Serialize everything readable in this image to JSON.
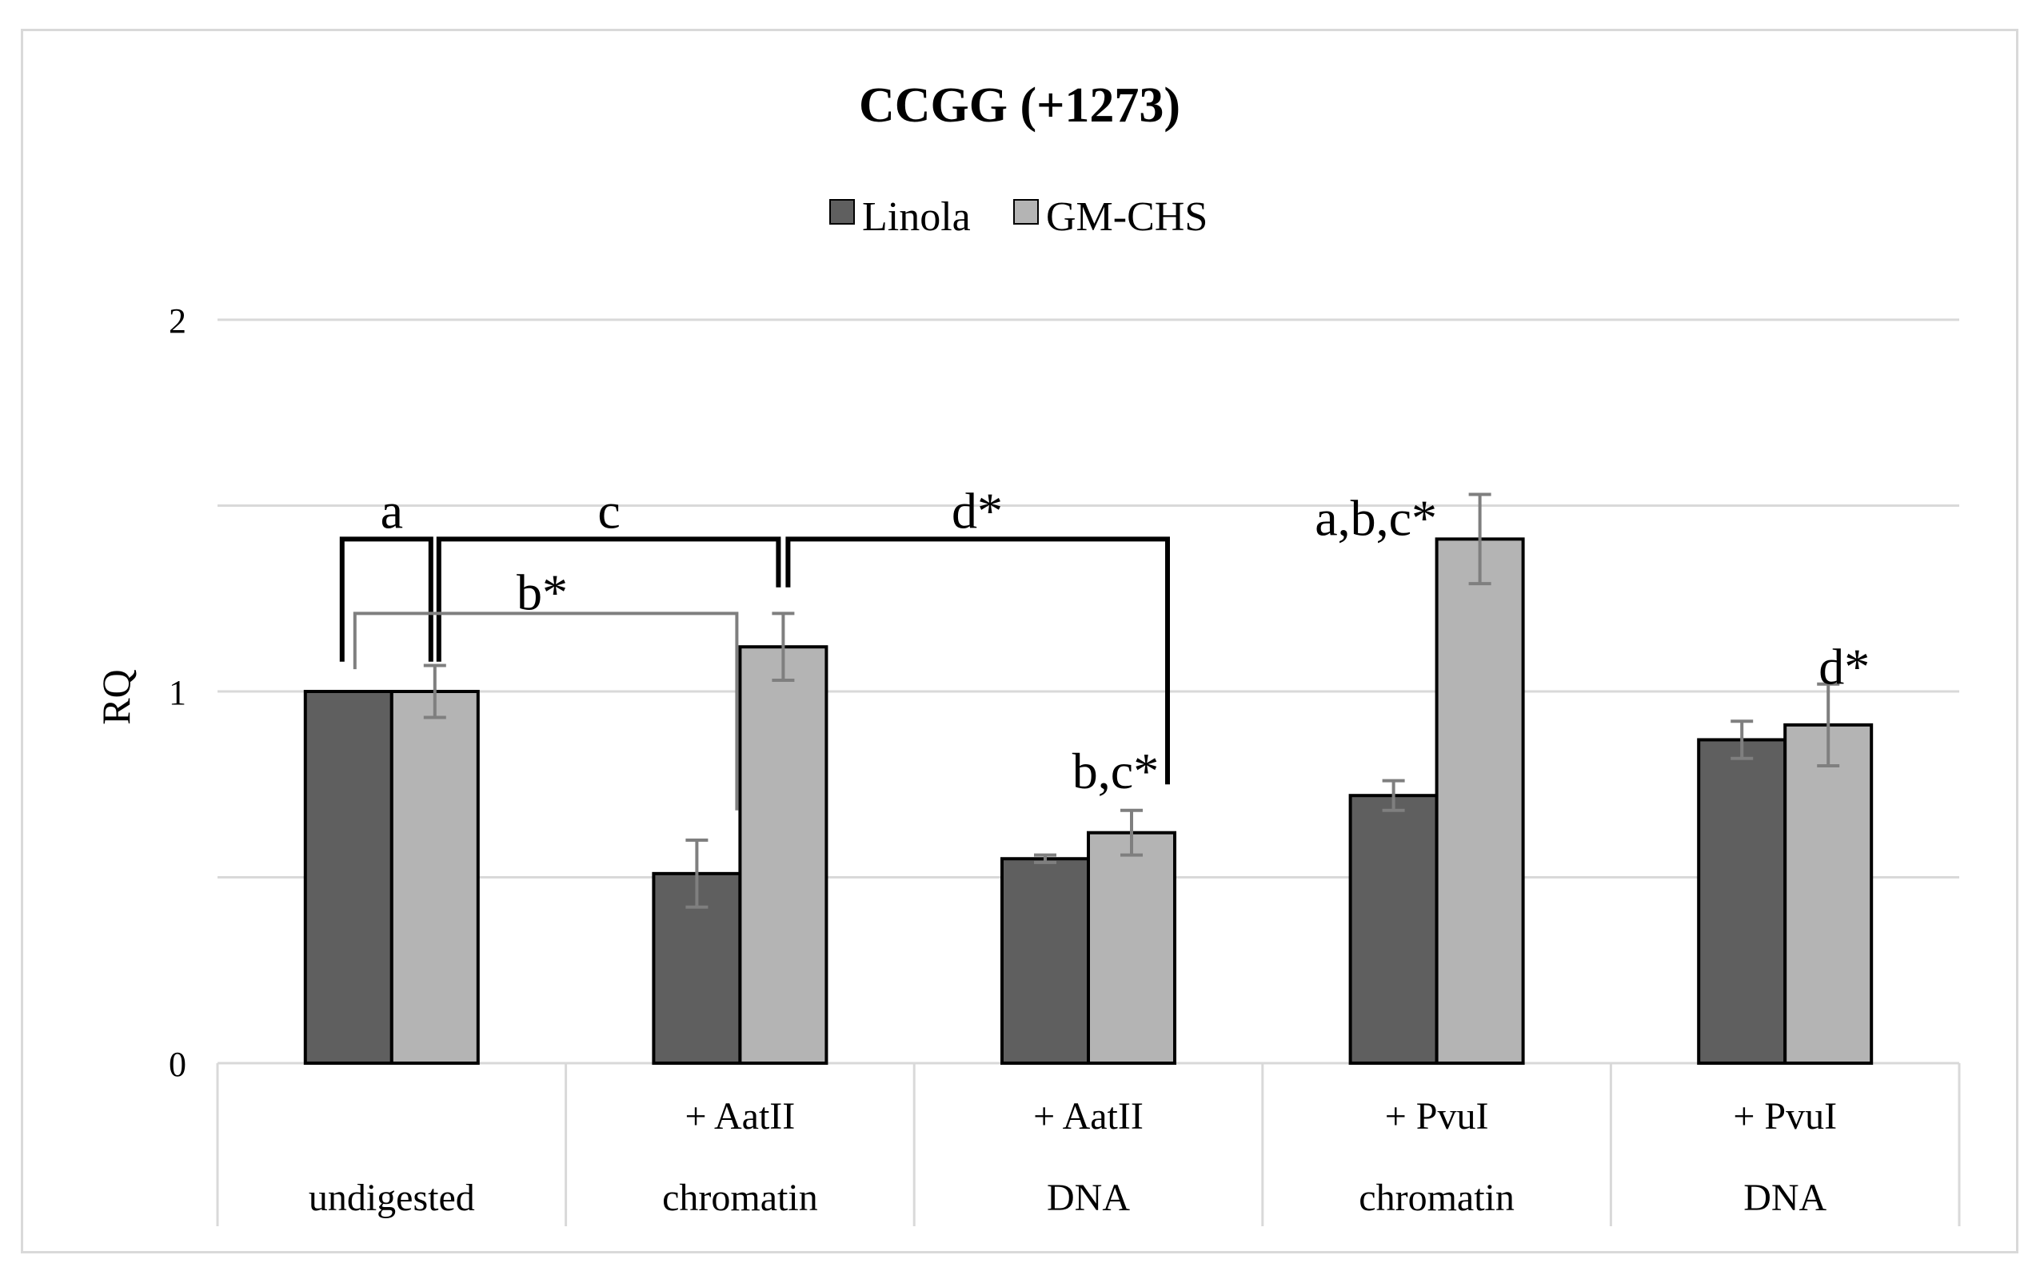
{
  "chart_data": {
    "type": "bar",
    "title": "CCGG (+1273)",
    "ylabel": "RQ",
    "xlabel": "",
    "ylim": [
      0,
      2
    ],
    "yticks": [
      "0",
      "1",
      "2"
    ],
    "gridlines": [
      0.5,
      1,
      1.5,
      2
    ],
    "legend_position": "top-center",
    "categories": [
      {
        "line1": "",
        "line2": "undigested"
      },
      {
        "line1": "+ AatII",
        "line2": "chromatin"
      },
      {
        "line1": "+ AatII",
        "line2": "DNA"
      },
      {
        "line1": "+ PvuI",
        "line2": "chromatin"
      },
      {
        "line1": "+ PvuI",
        "line2": "DNA"
      }
    ],
    "series": [
      {
        "name": "Linola",
        "color": "#5f5f5f",
        "values": [
          1.0,
          0.51,
          0.55,
          0.72,
          0.87
        ],
        "errors": [
          0.0,
          0.09,
          0.01,
          0.04,
          0.05
        ]
      },
      {
        "name": "GM-CHS",
        "color": "#b4b4b4",
        "values": [
          1.0,
          1.12,
          0.62,
          1.41,
          0.91
        ],
        "errors": [
          0.07,
          0.09,
          0.06,
          0.12,
          0.11
        ]
      }
    ],
    "annotations": [
      {
        "text": "a",
        "group": 0,
        "series": 0
      },
      {
        "text": "b*",
        "group": 0,
        "series": 0
      },
      {
        "text": "c",
        "group": 1,
        "series": 0
      },
      {
        "text": "d*",
        "group": 2,
        "series": 0
      },
      {
        "text": "b,c*",
        "group": 2,
        "series": 1
      },
      {
        "text": "a,b,c*",
        "group": 3,
        "series": 1
      },
      {
        "text": "d*",
        "group": 4,
        "series": 1
      }
    ]
  }
}
